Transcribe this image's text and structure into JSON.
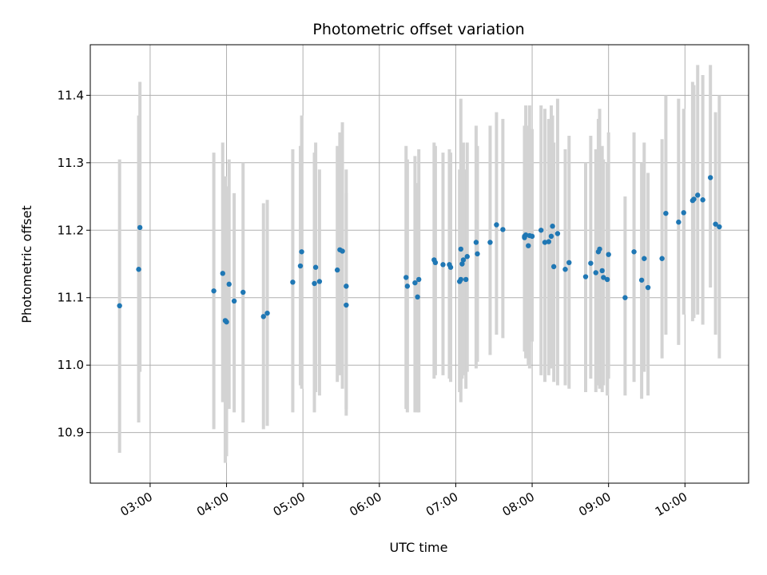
{
  "chart_data": {
    "type": "scatter",
    "title": "Photometric offset variation",
    "xlabel": "UTC time",
    "ylabel": "Photometric offset",
    "x_ticks": [
      "03:00",
      "04:00",
      "05:00",
      "06:00",
      "07:00",
      "08:00",
      "09:00",
      "10:00"
    ],
    "y_ticks": [
      "10.9",
      "11.0",
      "11.1",
      "11.2",
      "11.3",
      "11.4"
    ],
    "xlim": [
      "02:13",
      "10:50"
    ],
    "ylim": [
      10.825,
      11.475
    ],
    "grid": true,
    "colors": {
      "point": "#1f77b4",
      "errorbar": "#d3d3d3",
      "grid": "#b0b0b0"
    },
    "series": [
      {
        "x": [
          "02:36",
          "02:51",
          "02:52",
          "03:50",
          "03:57",
          "03:59",
          "04:00",
          "04:02",
          "04:06",
          "04:13",
          "04:29",
          "04:32",
          "04:52",
          "04:58",
          "04:59",
          "05:09",
          "05:10",
          "05:13",
          "05:27",
          "05:29",
          "05:31",
          "05:34",
          "05:34",
          "06:21",
          "06:22",
          "06:28",
          "06:30",
          "06:31",
          "06:43",
          "06:44",
          "06:50",
          "06:55",
          "06:56",
          "07:03",
          "07:04",
          "07:04",
          "07:05",
          "07:06",
          "07:08",
          "07:09",
          "07:16",
          "07:17",
          "07:27",
          "07:32",
          "07:37",
          "07:54",
          "07:54",
          "07:55",
          "07:57",
          "07:58",
          "08:00",
          "08:07",
          "08:10",
          "08:13",
          "08:15",
          "08:16",
          "08:17",
          "08:20",
          "08:26",
          "08:29",
          "08:42",
          "08:46",
          "08:50",
          "08:52",
          "08:53",
          "08:55",
          "08:56",
          "08:59",
          "09:00",
          "09:13",
          "09:20",
          "09:26",
          "09:28",
          "09:31",
          "09:42",
          "09:45",
          "09:55",
          "09:59",
          "10:06",
          "10:07",
          "10:10",
          "10:14",
          "10:20",
          "10:24",
          "10:27"
        ],
        "y": [
          11.088,
          11.142,
          11.204,
          11.11,
          11.136,
          11.066,
          11.064,
          11.12,
          11.095,
          11.108,
          11.072,
          11.077,
          11.123,
          11.147,
          11.168,
          11.121,
          11.145,
          11.124,
          11.141,
          11.171,
          11.169,
          11.117,
          11.089,
          11.13,
          11.117,
          11.122,
          11.101,
          11.127,
          11.156,
          11.152,
          11.149,
          11.149,
          11.145,
          11.124,
          11.172,
          11.127,
          11.15,
          11.156,
          11.127,
          11.161,
          11.182,
          11.165,
          11.182,
          11.208,
          11.201,
          11.191,
          11.189,
          11.193,
          11.177,
          11.192,
          11.191,
          11.2,
          11.182,
          11.183,
          11.191,
          11.206,
          11.146,
          11.195,
          11.142,
          11.152,
          11.131,
          11.151,
          11.137,
          11.168,
          11.172,
          11.14,
          11.13,
          11.127,
          11.164,
          11.1,
          11.168,
          11.126,
          11.158,
          11.115,
          11.158,
          11.225,
          11.212,
          11.226,
          11.244,
          11.246,
          11.252,
          11.245,
          11.278,
          11.209,
          11.205
        ],
        "yerr_lo": [
          10.87,
          10.915,
          10.99,
          10.905,
          10.945,
          10.855,
          10.865,
          10.935,
          10.93,
          10.915,
          10.905,
          10.91,
          10.93,
          10.97,
          10.965,
          10.93,
          10.96,
          10.955,
          10.975,
          10.985,
          10.965,
          10.935,
          10.925,
          10.935,
          10.93,
          10.93,
          10.93,
          10.93,
          10.98,
          10.985,
          10.985,
          10.98,
          10.975,
          10.96,
          10.945,
          10.965,
          10.98,
          10.985,
          10.965,
          10.99,
          10.995,
          11.005,
          11.015,
          11.045,
          11.04,
          11.045,
          11.02,
          11.01,
          11.0,
          10.995,
          11.035,
          10.985,
          10.975,
          10.985,
          10.995,
          11.045,
          10.975,
          10.97,
          10.97,
          10.965,
          10.96,
          10.98,
          10.96,
          10.97,
          10.965,
          10.96,
          10.97,
          10.955,
          10.98,
          10.955,
          10.975,
          10.95,
          10.99,
          10.955,
          11.01,
          11.045,
          11.03,
          11.075,
          11.065,
          11.07,
          11.075,
          11.06,
          11.115,
          11.045,
          11.01
        ],
        "yerr_hi": [
          11.305,
          11.37,
          11.42,
          11.315,
          11.33,
          11.28,
          11.265,
          11.305,
          11.255,
          11.3,
          11.24,
          11.245,
          11.32,
          11.325,
          11.37,
          11.315,
          11.33,
          11.29,
          11.325,
          11.345,
          11.36,
          11.29,
          11.255,
          11.325,
          11.305,
          11.31,
          11.27,
          11.32,
          11.33,
          11.325,
          11.315,
          11.32,
          11.315,
          11.29,
          11.395,
          11.29,
          11.32,
          11.33,
          11.29,
          11.33,
          11.355,
          11.325,
          11.355,
          11.375,
          11.365,
          11.34,
          11.355,
          11.385,
          11.355,
          11.385,
          11.35,
          11.385,
          11.38,
          11.365,
          11.385,
          11.37,
          11.33,
          11.395,
          11.32,
          11.34,
          11.3,
          11.34,
          11.32,
          11.365,
          11.38,
          11.325,
          11.305,
          11.3,
          11.345,
          11.25,
          11.345,
          11.3,
          11.33,
          11.285,
          11.335,
          11.4,
          11.395,
          11.38,
          11.42,
          11.415,
          11.445,
          11.43,
          11.445,
          11.375,
          11.4
        ]
      }
    ]
  }
}
